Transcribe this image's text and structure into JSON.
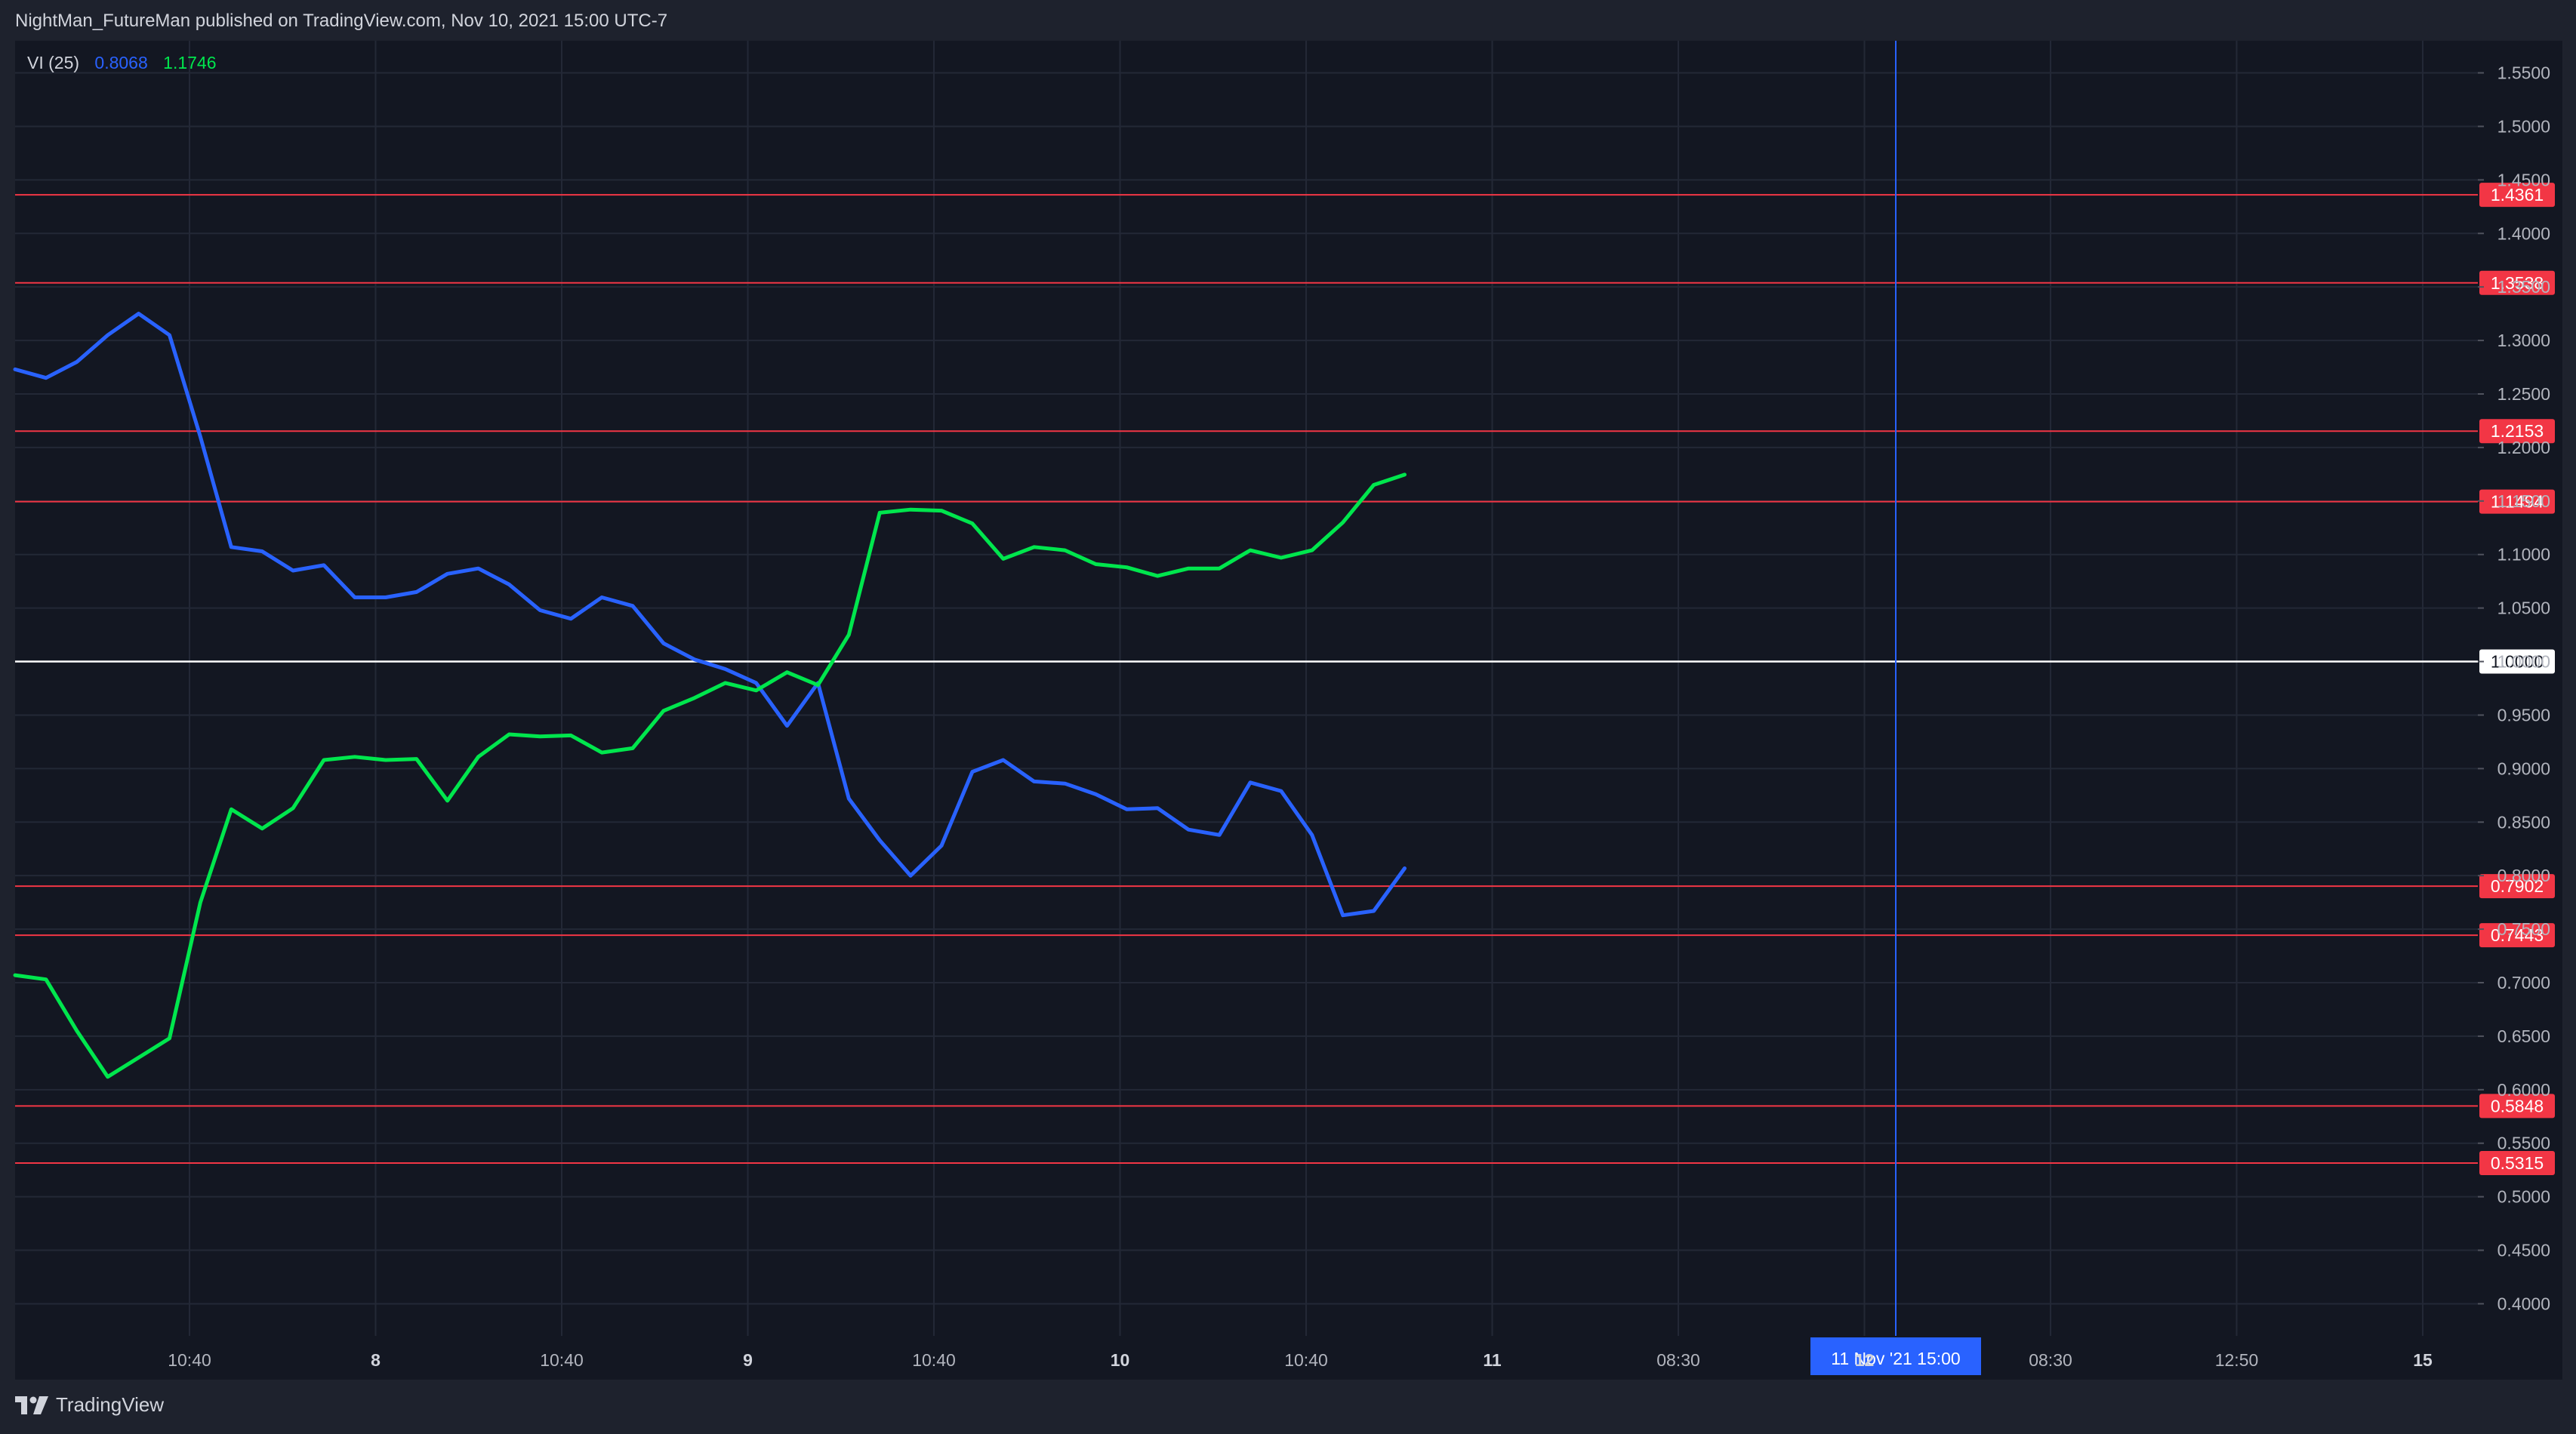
{
  "header": {
    "published_text": "NightMan_FutureMan published on TradingView.com, Nov 10, 2021 15:00 UTC-7"
  },
  "legend": {
    "indicator": "VI (25)",
    "vi_minus_value": "0.8068",
    "vi_plus_value": "1.1746",
    "vi_minus_color": "#2962ff",
    "vi_plus_color": "#00e64d"
  },
  "footer": {
    "brand": "TradingView"
  },
  "crosshair": {
    "label": "11 Nov '21   15:00",
    "color": "#2962ff"
  },
  "colors": {
    "background": "#131722",
    "grid": "#232836",
    "level_line": "#f23645",
    "baseline": "#ffffff",
    "axis_text": "#b2b5be"
  },
  "chart_data": {
    "type": "line",
    "ylim": [
      0.37,
      1.58
    ],
    "y_ticks": [
      "0.4000",
      "0.4500",
      "0.5000",
      "0.5500",
      "0.6000",
      "0.6500",
      "0.7000",
      "0.7500",
      "0.8000",
      "0.8500",
      "0.9000",
      "0.9500",
      "1.0000",
      "1.0500",
      "1.1000",
      "1.1500",
      "1.2000",
      "1.2500",
      "1.3000",
      "1.3500",
      "1.4000",
      "1.4500",
      "1.5000",
      "1.5500"
    ],
    "x_ticks": [
      "10:40",
      "8",
      "10:40",
      "9",
      "10:40",
      "10",
      "10:40",
      "11",
      "08:30",
      "12",
      "08:30",
      "12:50",
      "15"
    ],
    "horizontal_levels": [
      {
        "label": "1.4361",
        "value": 1.4361,
        "color": "#f23645"
      },
      {
        "label": "1.3538",
        "value": 1.3538,
        "color": "#f23645"
      },
      {
        "label": "1.2153",
        "value": 1.2153,
        "color": "#f23645"
      },
      {
        "label": "1.1494",
        "value": 1.1494,
        "color": "#f23645"
      },
      {
        "label": "1.0000",
        "value": 1.0,
        "color": "#ffffff"
      },
      {
        "label": "0.7902",
        "value": 0.7902,
        "color": "#f23645"
      },
      {
        "label": "0.7443",
        "value": 0.7443,
        "color": "#f23645"
      },
      {
        "label": "0.5848",
        "value": 0.5848,
        "color": "#f23645"
      },
      {
        "label": "0.5315",
        "value": 0.5315,
        "color": "#f23645"
      }
    ],
    "series": [
      {
        "name": "VI-",
        "color": "#2962ff",
        "values": [
          1.273,
          1.265,
          1.28,
          1.305,
          1.325,
          1.305,
          1.21,
          1.107,
          1.103,
          1.085,
          1.09,
          1.06,
          1.06,
          1.065,
          1.082,
          1.087,
          1.072,
          1.048,
          1.04,
          1.06,
          1.052,
          1.017,
          1.002,
          0.993,
          0.98,
          0.94,
          0.98,
          0.872,
          0.833,
          0.8,
          0.828,
          0.897,
          0.908,
          0.888,
          0.886,
          0.876,
          0.862,
          0.863,
          0.843,
          0.838,
          0.887,
          0.879,
          0.838,
          0.763,
          0.767,
          0.8068
        ]
      },
      {
        "name": "VI+",
        "color": "#00e64d",
        "values": [
          0.707,
          0.703,
          0.655,
          0.612,
          0.63,
          0.648,
          0.775,
          0.862,
          0.844,
          0.863,
          0.908,
          0.911,
          0.908,
          0.909,
          0.87,
          0.911,
          0.932,
          0.93,
          0.931,
          0.915,
          0.919,
          0.954,
          0.966,
          0.98,
          0.973,
          0.99,
          0.978,
          1.025,
          1.139,
          1.142,
          1.141,
          1.129,
          1.096,
          1.107,
          1.104,
          1.091,
          1.088,
          1.08,
          1.087,
          1.087,
          1.104,
          1.097,
          1.104,
          1.13,
          1.165,
          1.1746
        ]
      }
    ]
  }
}
